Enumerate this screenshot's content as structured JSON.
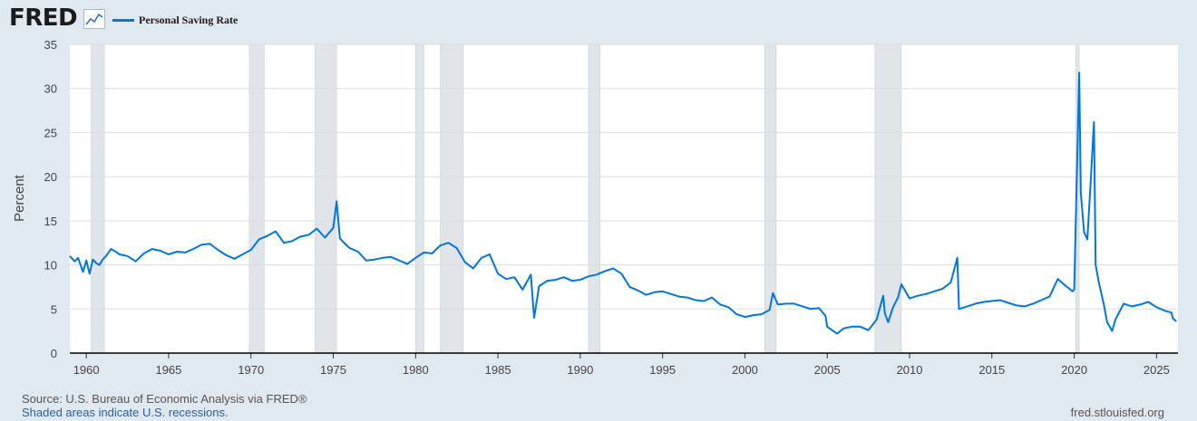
{
  "header": {
    "logo_text": "FRED",
    "logo_icon": "line-chart-icon",
    "legend_label": "Personal Saving Rate"
  },
  "footer": {
    "source": "Source: U.S. Bureau of Economic Analysis via FRED®",
    "recession_note": "Shaded areas indicate U.S. recessions.",
    "site": "fred.stlouisfed.org"
  },
  "colors": {
    "page_background": "#e1e9f0",
    "plot_background": "#ffffff",
    "series_line": "#0076e0",
    "recession_shading": "#e1e5ea",
    "gridline": "#dddddd"
  },
  "chart_data": {
    "type": "line",
    "title": "",
    "xlabel": "",
    "ylabel": "Percent",
    "xlim": [
      1959.0,
      2026.3
    ],
    "ylim": [
      0,
      35
    ],
    "grid": true,
    "legend_placement": "top-left",
    "x_ticks": [
      1960,
      1965,
      1970,
      1975,
      1980,
      1985,
      1990,
      1995,
      2000,
      2005,
      2010,
      2015,
      2020,
      2025
    ],
    "y_ticks": [
      0,
      5,
      10,
      15,
      20,
      25,
      30,
      35
    ],
    "recessions": [
      [
        1960.3,
        1961.1
      ],
      [
        1969.9,
        1970.8
      ],
      [
        1973.9,
        1975.2
      ],
      [
        1980.0,
        1980.5
      ],
      [
        1981.5,
        1982.9
      ],
      [
        1990.5,
        1991.2
      ],
      [
        2001.2,
        2001.9
      ],
      [
        2007.9,
        2009.5
      ],
      [
        2020.1,
        2020.3
      ]
    ],
    "series": [
      {
        "name": "Personal Saving Rate",
        "x": [
          1959.0,
          1959.3,
          1959.5,
          1959.8,
          1960.0,
          1960.2,
          1960.4,
          1960.6,
          1960.8,
          1961.0,
          1961.2,
          1961.5,
          1961.8,
          1962.0,
          1962.5,
          1963.0,
          1963.5,
          1964.0,
          1964.5,
          1965.0,
          1965.5,
          1966.0,
          1966.5,
          1967.0,
          1967.5,
          1968.0,
          1968.5,
          1969.0,
          1969.5,
          1970.0,
          1970.5,
          1971.0,
          1971.5,
          1972.0,
          1972.5,
          1973.0,
          1973.5,
          1974.0,
          1974.5,
          1975.0,
          1975.2,
          1975.4,
          1975.6,
          1976.0,
          1976.5,
          1977.0,
          1977.5,
          1978.0,
          1978.5,
          1979.0,
          1979.5,
          1980.0,
          1980.5,
          1981.0,
          1981.5,
          1982.0,
          1982.5,
          1983.0,
          1983.5,
          1984.0,
          1984.5,
          1985.0,
          1985.5,
          1986.0,
          1986.5,
          1987.0,
          1987.2,
          1987.5,
          1988.0,
          1988.5,
          1989.0,
          1989.5,
          1990.0,
          1990.5,
          1991.0,
          1991.5,
          1992.0,
          1992.5,
          1993.0,
          1993.5,
          1994.0,
          1994.5,
          1995.0,
          1995.5,
          1996.0,
          1996.5,
          1997.0,
          1997.5,
          1998.0,
          1998.5,
          1999.0,
          1999.5,
          2000.0,
          2000.5,
          2001.0,
          2001.5,
          2001.7,
          2002.0,
          2002.5,
          2003.0,
          2003.5,
          2004.0,
          2004.5,
          2004.9,
          2005.0,
          2005.3,
          2005.6,
          2006.0,
          2006.5,
          2007.0,
          2007.5,
          2008.0,
          2008.4,
          2008.5,
          2008.7,
          2009.0,
          2009.3,
          2009.5,
          2010.0,
          2010.5,
          2011.0,
          2011.5,
          2012.0,
          2012.5,
          2012.9,
          2013.0,
          2013.5,
          2014.0,
          2014.5,
          2015.0,
          2015.5,
          2016.0,
          2016.5,
          2017.0,
          2017.5,
          2018.0,
          2018.5,
          2019.0,
          2019.5,
          2019.9,
          2020.0,
          2020.3,
          2020.4,
          2020.6,
          2020.8,
          2021.0,
          2021.2,
          2021.3,
          2021.5,
          2021.8,
          2022.0,
          2022.3,
          2022.5,
          2023.0,
          2023.5,
          2024.0,
          2024.5,
          2025.0,
          2025.5,
          2025.9,
          2026.0,
          2026.2
        ],
        "values": [
          11.0,
          10.4,
          10.8,
          9.2,
          10.5,
          9.0,
          10.6,
          10.2,
          10.0,
          10.6,
          11.0,
          11.8,
          11.5,
          11.2,
          11.0,
          10.4,
          11.3,
          11.8,
          11.6,
          11.2,
          11.5,
          11.4,
          11.8,
          12.3,
          12.4,
          11.7,
          11.1,
          10.7,
          11.2,
          11.7,
          12.9,
          13.3,
          13.8,
          12.5,
          12.7,
          13.2,
          13.4,
          14.1,
          13.1,
          14.2,
          17.2,
          13.0,
          12.6,
          11.9,
          11.5,
          10.5,
          10.6,
          10.8,
          10.9,
          10.5,
          10.1,
          10.8,
          11.4,
          11.3,
          12.2,
          12.5,
          11.9,
          10.3,
          9.6,
          10.8,
          11.2,
          9.0,
          8.4,
          8.6,
          7.2,
          8.9,
          4.0,
          7.6,
          8.2,
          8.3,
          8.6,
          8.2,
          8.3,
          8.7,
          8.9,
          9.3,
          9.6,
          9.0,
          7.5,
          7.1,
          6.6,
          6.9,
          7.0,
          6.7,
          6.4,
          6.3,
          6.0,
          5.9,
          6.3,
          5.5,
          5.2,
          4.4,
          4.1,
          4.3,
          4.4,
          4.9,
          6.8,
          5.5,
          5.6,
          5.6,
          5.3,
          5.0,
          5.1,
          4.2,
          3.0,
          2.6,
          2.2,
          2.8,
          3.0,
          3.0,
          2.6,
          3.8,
          6.5,
          4.5,
          3.5,
          5.2,
          6.3,
          7.8,
          6.2,
          6.5,
          6.7,
          7.0,
          7.3,
          8.0,
          10.8,
          5.0,
          5.3,
          5.6,
          5.8,
          5.9,
          6.0,
          5.7,
          5.4,
          5.3,
          5.6,
          6.0,
          6.4,
          8.4,
          7.6,
          7.0,
          7.2,
          31.8,
          18.1,
          13.7,
          12.9,
          19.5,
          26.2,
          10.0,
          8.0,
          5.5,
          3.5,
          2.5,
          3.8,
          5.6,
          5.3,
          5.5,
          5.8,
          5.2,
          4.8,
          4.6,
          3.9,
          3.6
        ]
      }
    ]
  }
}
